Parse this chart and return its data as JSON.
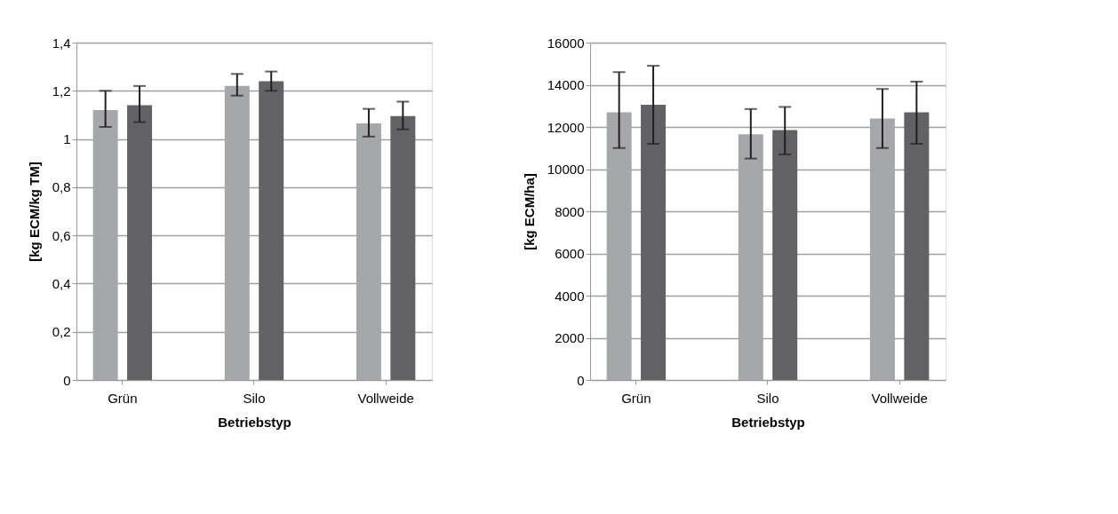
{
  "chart_data": [
    {
      "type": "bar",
      "xlabel": "Betriebstyp",
      "ylabel": "[kg ECM/kg TM]",
      "categories": [
        "Grün",
        "Silo",
        "Vollweide"
      ],
      "series": [
        {
          "color": "#a6a7aa",
          "values": [
            1.12,
            1.22,
            1.065
          ],
          "errors": [
            [
              1.05,
              1.2
            ],
            [
              1.18,
              1.27
            ],
            [
              1.01,
              1.125
            ]
          ]
        },
        {
          "color": "#626264",
          "values": [
            1.14,
            1.24,
            1.095
          ],
          "errors": [
            [
              1.07,
              1.22
            ],
            [
              1.2,
              1.28
            ],
            [
              1.04,
              1.155
            ]
          ]
        }
      ],
      "ylim": [
        0,
        1.4
      ],
      "yticks": [
        0,
        {
          "value": 0.2,
          "label": "0,2"
        },
        {
          "value": 0.4,
          "label": "0,4"
        },
        {
          "value": 0.6,
          "label": "0,6"
        },
        {
          "value": 0.8,
          "label": "0,8"
        },
        1,
        {
          "value": 1.2,
          "label": "1,2"
        },
        {
          "value": 1.4,
          "label": "1,4"
        }
      ],
      "grid": "y",
      "legend": false
    },
    {
      "type": "bar",
      "xlabel": "Betriebstyp",
      "ylabel": "[kg ECM/ha]",
      "categories": [
        "Grün",
        "Silo",
        "Vollweide"
      ],
      "series": [
        {
          "color": "#a6a7aa",
          "values": [
            12700,
            11650,
            12400
          ],
          "errors": [
            [
              11000,
              14600
            ],
            [
              10500,
              12850
            ],
            [
              11000,
              13800
            ]
          ]
        },
        {
          "color": "#626264",
          "values": [
            13050,
            11850,
            12700
          ],
          "errors": [
            [
              11200,
              14900
            ],
            [
              10700,
              12950
            ],
            [
              11200,
              14150
            ]
          ]
        }
      ],
      "ylim": [
        0,
        16000
      ],
      "yticks": [
        0,
        2000,
        4000,
        6000,
        8000,
        10000,
        12000,
        14000,
        16000
      ],
      "grid": "y",
      "legend": false
    }
  ]
}
